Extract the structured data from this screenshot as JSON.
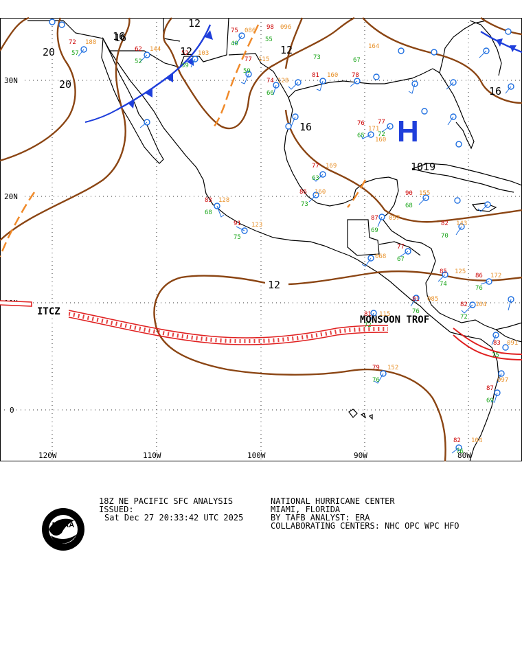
{
  "map": {
    "latitude_labels": [
      "30N",
      "20N",
      "10N",
      "0"
    ],
    "longitude_labels": [
      "120W",
      "110W",
      "100W",
      "90W",
      "80W"
    ],
    "isobar_labels": [
      "12",
      "16",
      "16",
      "20",
      "20",
      "12",
      "12",
      "16",
      "16",
      "12"
    ],
    "high_center": {
      "symbol": "H",
      "pressure": "1019"
    },
    "feature_labels": {
      "itcz": "ITCZ",
      "monsoon": "MONSOON TROF"
    },
    "colors": {
      "isobar": "#8b4513",
      "cold_front": "#1f3fdb",
      "trough": "#f08a2a",
      "itcz": "#e02020",
      "high": "#1f3fdb",
      "land_outline": "#000000",
      "grid": "#000000",
      "temp": "#cc0000",
      "dewpoint": "#1aa51a",
      "pressure_code": "#e8912a",
      "station": "#1f6fe0"
    },
    "stations": [
      {
        "t": "75",
        "d": "40",
        "p": "086"
      },
      {
        "t": "77",
        "d": "59",
        "p": "115"
      },
      {
        "t": "74",
        "d": "66",
        "p": "128"
      },
      {
        "t": "81",
        "d": "73",
        "p": "160"
      },
      {
        "t": "78",
        "d": "67",
        "p": "164"
      },
      {
        "t": "77",
        "d": "72",
        "p": "160"
      },
      {
        "t": "76",
        "d": "65",
        "p": "171"
      },
      {
        "t": "77",
        "d": "63",
        "p": "169"
      },
      {
        "t": "86",
        "d": "73",
        "p": "160"
      },
      {
        "t": "83",
        "d": "68",
        "p": "128"
      },
      {
        "t": "91",
        "d": "75",
        "p": "123"
      },
      {
        "t": "87",
        "d": "69",
        "p": "097"
      },
      {
        "t": "77",
        "d": "67",
        "p": "068"
      },
      {
        "t": "90",
        "d": "68",
        "p": "155"
      },
      {
        "t": "82",
        "d": "70",
        "p": "143"
      },
      {
        "t": "85",
        "d": "74",
        "p": "125"
      },
      {
        "t": "86",
        "d": "76",
        "p": "172"
      },
      {
        "t": "81",
        "d": "76",
        "p": "085"
      },
      {
        "t": "82",
        "d": "72",
        "p": "104"
      },
      {
        "t": "79",
        "d": "76",
        "p": "152"
      },
      {
        "t": "81",
        "d": "72",
        "p": "115"
      },
      {
        "t": "83",
        "d": "75",
        "p": "091"
      },
      {
        "t": "87",
        "d": "69",
        "p": "097"
      },
      {
        "t": "82",
        "d": "76",
        "p": "104"
      },
      {
        "t": "62",
        "d": "52",
        "p": "144"
      },
      {
        "t": "52",
        "d": "39",
        "p": "103"
      },
      {
        "t": "98",
        "d": "55",
        "p": "096"
      },
      {
        "t": "72",
        "d": "57",
        "p": "188"
      }
    ]
  },
  "footer": {
    "left_line1": "18Z NE PACIFIC SFC ANALYSIS",
    "left_line2": "ISSUED:",
    "left_line3": "Sat Dec 27 20:33:42 UTC 2025",
    "right_line1": "NATIONAL HURRICANE CENTER",
    "right_line2": "MIAMI, FLORIDA",
    "right_line3": "BY TAFB ANALYST: ERA",
    "right_line4": "COLLABORATING CENTERS: NHC OPC WPC HFO",
    "logo_text": "NOAA"
  }
}
